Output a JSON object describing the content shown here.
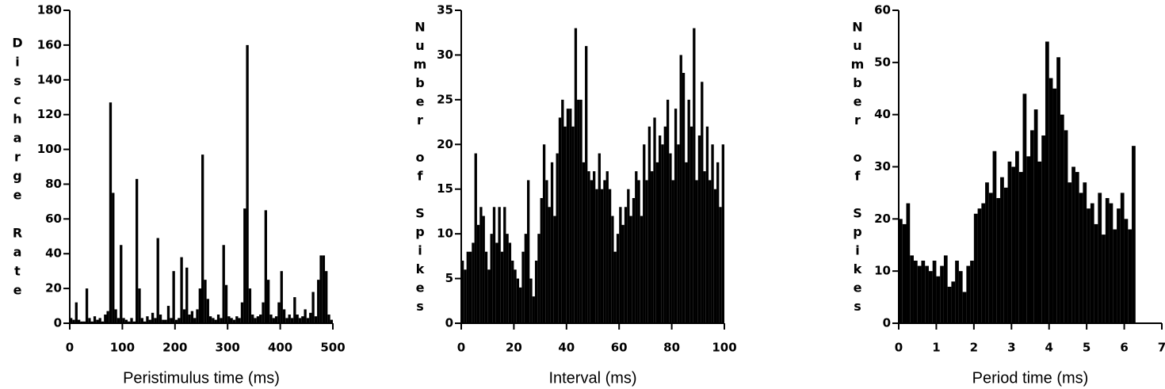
{
  "chart_data": [
    {
      "type": "histogram",
      "xlabel": "Peristimulus time (ms)",
      "ylabel": "Discharge Rate",
      "color": "#000000",
      "bins": [
        0,
        5,
        10,
        15,
        20,
        25,
        30,
        35,
        40,
        45,
        50,
        55,
        60,
        65,
        70,
        75,
        80,
        85,
        90,
        95,
        100,
        105,
        110,
        115,
        120,
        125,
        130,
        135,
        140,
        145,
        150,
        155,
        160,
        165,
        170,
        175,
        180,
        185,
        190,
        195,
        200,
        205,
        210,
        215,
        220,
        225,
        230,
        235,
        240,
        245,
        250,
        255,
        260,
        265,
        270,
        275,
        280,
        285,
        290,
        295,
        300,
        305,
        310,
        315,
        320,
        325,
        330,
        335,
        340,
        345,
        350,
        355,
        360,
        365,
        370,
        375,
        380,
        385,
        390,
        395,
        400,
        405,
        410,
        415,
        420,
        425,
        430,
        435,
        440,
        445,
        450,
        455,
        460,
        465,
        470,
        475,
        480,
        485,
        490,
        495,
        500
      ],
      "values": [
        3,
        2,
        12,
        2,
        1,
        1,
        20,
        3,
        1,
        4,
        2,
        3,
        1,
        5,
        7,
        127,
        75,
        8,
        3,
        45,
        3,
        2,
        1,
        3,
        1,
        83,
        20,
        3,
        1,
        4,
        2,
        6,
        3,
        49,
        5,
        2,
        2,
        10,
        3,
        30,
        2,
        3,
        38,
        8,
        32,
        5,
        7,
        3,
        8,
        20,
        97,
        25,
        14,
        4,
        3,
        2,
        5,
        3,
        45,
        22,
        4,
        3,
        2,
        4,
        3,
        12,
        66,
        160,
        20,
        5,
        3,
        4,
        5,
        12,
        65,
        25,
        5,
        3,
        4,
        12,
        30,
        8,
        3,
        5,
        3,
        15,
        5,
        3,
        4,
        8,
        3,
        6,
        18,
        4,
        25,
        39,
        39,
        30,
        5,
        2
      ],
      "xlim": [
        0,
        500
      ],
      "ylim": [
        0,
        180
      ],
      "xticks": [
        0,
        100,
        200,
        300,
        400,
        500
      ],
      "yticks": [
        0,
        20,
        40,
        60,
        80,
        100,
        120,
        140,
        160,
        180
      ]
    },
    {
      "type": "histogram",
      "xlabel": "Interval (ms)",
      "ylabel": "Number of Spikes",
      "color": "#000000",
      "bins": [
        0,
        1,
        2,
        3,
        4,
        5,
        6,
        7,
        8,
        9,
        10,
        11,
        12,
        13,
        14,
        15,
        16,
        17,
        18,
        19,
        20,
        21,
        22,
        23,
        24,
        25,
        26,
        27,
        28,
        29,
        30,
        31,
        32,
        33,
        34,
        35,
        36,
        37,
        38,
        39,
        40,
        41,
        42,
        43,
        44,
        45,
        46,
        47,
        48,
        49,
        50,
        51,
        52,
        53,
        54,
        55,
        56,
        57,
        58,
        59,
        60,
        61,
        62,
        63,
        64,
        65,
        66,
        67,
        68,
        69,
        70,
        71,
        72,
        73,
        74,
        75,
        76,
        77,
        78,
        79,
        80,
        81,
        82,
        83,
        84,
        85,
        86,
        87,
        88,
        89,
        90,
        91,
        92,
        93,
        94,
        95,
        96,
        97,
        98,
        99,
        100
      ],
      "values": [
        7,
        6,
        8,
        8,
        9,
        19,
        11,
        13,
        12,
        8,
        6,
        10,
        13,
        9,
        13,
        8,
        13,
        10,
        9,
        7,
        6,
        5,
        4,
        8,
        10,
        16,
        5,
        3,
        7,
        10,
        14,
        20,
        16,
        13,
        18,
        12,
        19,
        23,
        25,
        22,
        24,
        24,
        22,
        33,
        25,
        25,
        18,
        31,
        17,
        16,
        17,
        15,
        19,
        15,
        16,
        17,
        15,
        12,
        8,
        10,
        13,
        11,
        13,
        15,
        12,
        14,
        17,
        16,
        12,
        20,
        16,
        22,
        17,
        23,
        18,
        21,
        20,
        22,
        25,
        19,
        16,
        24,
        20,
        30,
        28,
        18,
        25,
        22,
        33,
        16,
        21,
        27,
        17,
        22,
        16,
        20,
        15,
        18,
        13,
        20
      ],
      "xlim": [
        0,
        100
      ],
      "ylim": [
        0,
        35
      ],
      "xticks": [
        0,
        20,
        40,
        60,
        80,
        100
      ],
      "yticks": [
        0,
        5,
        10,
        15,
        20,
        25,
        30,
        35
      ]
    },
    {
      "type": "histogram",
      "xlabel": "Period time (ms)",
      "ylabel": "Number of Spikes",
      "color": "#000000",
      "bins": [
        0,
        0.1,
        0.2,
        0.3,
        0.4,
        0.5,
        0.6,
        0.7,
        0.8,
        0.9,
        1,
        1.1,
        1.2,
        1.3,
        1.4,
        1.5,
        1.6,
        1.7,
        1.8,
        1.9,
        2,
        2.1,
        2.2,
        2.3,
        2.4,
        2.5,
        2.6,
        2.7,
        2.8,
        2.9,
        3,
        3.1,
        3.2,
        3.3,
        3.4,
        3.5,
        3.6,
        3.7,
        3.8,
        3.9,
        4,
        4.1,
        4.2,
        4.3,
        4.4,
        4.5,
        4.6,
        4.7,
        4.8,
        4.9,
        5,
        5.1,
        5.2,
        5.3,
        5.4,
        5.5,
        5.6,
        5.7,
        5.8,
        5.9,
        6,
        6.1,
        6.2,
        6.3
      ],
      "values": [
        20,
        19,
        23,
        13,
        12,
        11,
        12,
        11,
        10,
        12,
        9,
        11,
        13,
        7,
        8,
        12,
        10,
        6,
        11,
        12,
        21,
        22,
        23,
        27,
        25,
        33,
        24,
        28,
        26,
        31,
        30,
        33,
        29,
        44,
        32,
        37,
        41,
        31,
        36,
        54,
        47,
        45,
        51,
        40,
        37,
        27,
        30,
        29,
        25,
        27,
        22,
        23,
        19,
        25,
        17,
        24,
        23,
        18,
        22,
        25,
        20,
        18,
        34
      ],
      "xlim": [
        0,
        7
      ],
      "ylim": [
        0,
        60
      ],
      "xticks": [
        0,
        1,
        2,
        3,
        4,
        5,
        6,
        7
      ],
      "yticks": [
        0,
        10,
        20,
        30,
        40,
        50,
        60
      ]
    }
  ]
}
